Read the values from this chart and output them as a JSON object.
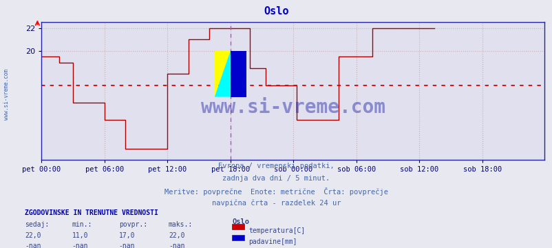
{
  "title": "Oslo",
  "title_color": "#0000cc",
  "bg_color": "#e8e8f0",
  "plot_bg_color": "#e0e0ee",
  "x_tick_labels": [
    "pet 00:00",
    "pet 06:00",
    "pet 12:00",
    "pet 18:00",
    "sob 00:00",
    "sob 06:00",
    "sob 12:00",
    "sob 18:00"
  ],
  "x_tick_positions": [
    0,
    72,
    144,
    216,
    288,
    360,
    432,
    504
  ],
  "total_points": 576,
  "ylim": [
    10.5,
    22.5
  ],
  "yticks": [
    20,
    22
  ],
  "avg_line_y": 17.0,
  "avg_line_color": "#dd0000",
  "vertical_line_x": 216,
  "vertical_line_color": "#cc44cc",
  "temp_line_color": "#aa0000",
  "grid_color": "#ccaaaa",
  "footer_lines": [
    "Evropa / vremenski podatki,",
    "zadnja dva dni / 5 minut.",
    "Meritve: povprečne  Enote: metrične  Črta: povprečje",
    "navpična črta - razdelek 24 ur"
  ],
  "footer_color": "#4466aa",
  "legend_title": "Oslo",
  "legend_items": [
    {
      "label": "temperatura[C]",
      "color": "#cc0000"
    },
    {
      "label": "padavine[mm]",
      "color": "#0000cc"
    }
  ],
  "stats_header": "ZGODOVINSKE IN TRENUTNE VREDNOSTI",
  "stats_row1": [
    "22,0",
    "11,0",
    "17,0",
    "22,0"
  ],
  "stats_row2": [
    "-nan",
    "-nan",
    "-nan",
    "-nan"
  ],
  "watermark": "www.si-vreme.com",
  "watermark_color": "#2222aa",
  "left_label": "www.si-vreme.com",
  "left_label_color": "#4466aa",
  "temp_data": [
    19.5,
    19.5,
    19.5,
    19.5,
    19.5,
    19.5,
    19.5,
    19.5,
    19.5,
    19.5,
    19.5,
    19.5,
    19.5,
    19.5,
    19.5,
    19.5,
    19.5,
    19.5,
    19.5,
    19.5,
    19.0,
    19.0,
    19.0,
    19.0,
    19.0,
    19.0,
    19.0,
    19.0,
    19.0,
    19.0,
    19.0,
    19.0,
    19.0,
    19.0,
    19.0,
    19.0,
    15.5,
    15.5,
    15.5,
    15.5,
    15.5,
    15.5,
    15.5,
    15.5,
    15.5,
    15.5,
    15.5,
    15.5,
    15.5,
    15.5,
    15.5,
    15.5,
    15.5,
    15.5,
    15.5,
    15.5,
    15.5,
    15.5,
    15.5,
    15.5,
    15.5,
    15.5,
    15.5,
    15.5,
    15.5,
    15.5,
    15.5,
    15.5,
    15.5,
    15.5,
    15.5,
    15.5,
    14.0,
    14.0,
    14.0,
    14.0,
    14.0,
    14.0,
    14.0,
    14.0,
    14.0,
    14.0,
    14.0,
    14.0,
    14.0,
    14.0,
    14.0,
    14.0,
    14.0,
    14.0,
    14.0,
    14.0,
    14.0,
    14.0,
    14.0,
    14.0,
    11.5,
    11.5,
    11.5,
    11.5,
    11.5,
    11.5,
    11.5,
    11.5,
    11.5,
    11.5,
    11.5,
    11.5,
    11.5,
    11.5,
    11.5,
    11.5,
    11.5,
    11.5,
    11.5,
    11.5,
    11.5,
    11.5,
    11.5,
    11.5,
    11.5,
    11.5,
    11.5,
    11.5,
    11.5,
    11.5,
    11.5,
    11.5,
    11.5,
    11.5,
    11.5,
    11.5,
    11.5,
    11.5,
    11.5,
    11.5,
    11.5,
    11.5,
    11.5,
    11.5,
    11.5,
    11.5,
    11.5,
    11.5,
    18.0,
    18.0,
    18.0,
    18.0,
    18.0,
    18.0,
    18.0,
    18.0,
    18.0,
    18.0,
    18.0,
    18.0,
    18.0,
    18.0,
    18.0,
    18.0,
    18.0,
    18.0,
    18.0,
    18.0,
    18.0,
    18.0,
    18.0,
    18.0,
    21.0,
    21.0,
    21.0,
    21.0,
    21.0,
    21.0,
    21.0,
    21.0,
    21.0,
    21.0,
    21.0,
    21.0,
    21.0,
    21.0,
    21.0,
    21.0,
    21.0,
    21.0,
    21.0,
    21.0,
    21.0,
    21.0,
    21.0,
    21.0,
    22.0,
    22.0,
    22.0,
    22.0,
    22.0,
    22.0,
    22.0,
    22.0,
    22.0,
    22.0,
    22.0,
    22.0,
    22.0,
    22.0,
    22.0,
    22.0,
    22.0,
    22.0,
    22.0,
    22.0,
    22.0,
    22.0,
    22.0,
    22.0,
    22.0,
    22.0,
    22.0,
    22.0,
    22.0,
    22.0,
    22.0,
    22.0,
    22.0,
    22.0,
    22.0,
    22.0,
    22.0,
    22.0,
    22.0,
    22.0,
    22.0,
    22.0,
    22.0,
    22.0,
    22.0,
    22.0,
    18.5,
    18.5,
    18.5,
    18.5,
    18.5,
    18.5,
    18.5,
    18.5,
    18.5,
    18.5,
    18.5,
    18.5,
    18.5,
    18.5,
    18.5,
    18.5,
    18.5,
    18.5,
    17.0,
    17.0,
    17.0,
    17.0,
    17.0,
    17.0,
    17.0,
    17.0,
    17.0,
    17.0,
    17.0,
    17.0,
    17.0,
    17.0,
    17.0,
    17.0,
    17.0,
    17.0,
    17.0,
    17.0,
    17.0,
    17.0,
    17.0,
    17.0,
    17.0,
    17.0,
    17.0,
    17.0,
    17.0,
    17.0,
    17.0,
    17.0,
    17.0,
    17.0,
    17.0,
    17.0,
    14.0,
    14.0,
    14.0,
    14.0,
    14.0,
    14.0,
    14.0,
    14.0,
    14.0,
    14.0,
    14.0,
    14.0,
    14.0,
    14.0,
    14.0,
    14.0,
    14.0,
    14.0,
    14.0,
    14.0,
    14.0,
    14.0,
    14.0,
    14.0,
    14.0,
    14.0,
    14.0,
    14.0,
    14.0,
    14.0,
    14.0,
    14.0,
    14.0,
    14.0,
    14.0,
    14.0,
    14.0,
    14.0,
    14.0,
    14.0,
    14.0,
    14.0,
    14.0,
    14.0,
    14.0,
    14.0,
    14.0,
    14.0,
    19.5,
    19.5,
    19.5,
    19.5,
    19.5,
    19.5,
    19.5,
    19.5,
    19.5,
    19.5,
    19.5,
    19.5,
    19.5,
    19.5,
    19.5,
    19.5,
    19.5,
    19.5,
    19.5,
    19.5,
    19.5,
    19.5,
    19.5,
    19.5,
    19.5,
    19.5,
    19.5,
    19.5,
    19.5,
    19.5,
    19.5,
    19.5,
    19.5,
    19.5,
    19.5,
    19.5,
    19.5,
    19.5,
    22.0,
    22.0,
    22.0,
    22.0,
    22.0,
    22.0,
    22.0,
    22.0,
    22.0,
    22.0,
    22.0,
    22.0,
    22.0,
    22.0,
    22.0,
    22.0,
    22.0,
    22.0,
    22.0,
    22.0,
    22.0,
    22.0,
    22.0,
    22.0,
    22.0,
    22.0,
    22.0,
    22.0,
    22.0,
    22.0,
    22.0,
    22.0,
    22.0,
    22.0,
    22.0,
    22.0,
    22.0,
    22.0,
    22.0,
    22.0,
    22.0,
    22.0,
    22.0,
    22.0,
    22.0,
    22.0,
    22.0,
    22.0,
    22.0,
    22.0,
    22.0,
    22.0,
    22.0,
    22.0,
    22.0,
    22.0,
    22.0,
    22.0,
    22.0,
    22.0,
    22.0,
    22.0,
    22.0,
    22.0,
    22.0,
    22.0,
    22.0,
    22.0,
    22.0,
    22.0,
    22.0,
    22.0
  ]
}
